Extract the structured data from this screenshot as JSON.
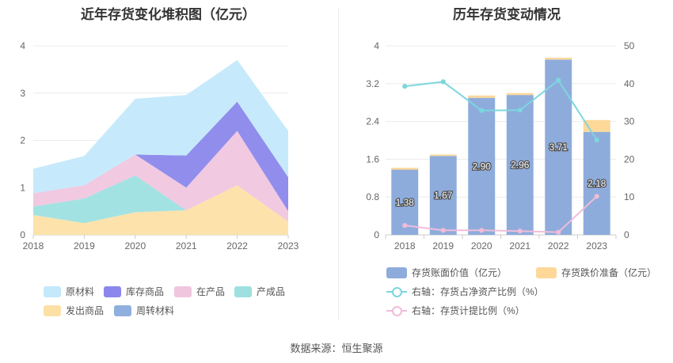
{
  "footer": {
    "source": "数据来源：恒生聚源"
  },
  "chart_data": [
    {
      "type": "area",
      "stacked": true,
      "title": "近年存货变化堆积图（亿元）",
      "categories": [
        "2018",
        "2019",
        "2020",
        "2021",
        "2022",
        "2023"
      ],
      "ylim": [
        0,
        4
      ],
      "yticks": [
        "0",
        "1",
        "2",
        "3",
        "4"
      ],
      "grid": true,
      "legend_position": "bottom",
      "series": [
        {
          "name": "发出商品",
          "color": "#fde0a6",
          "values": [
            0.42,
            0.25,
            0.48,
            0.52,
            1.05,
            0.28
          ]
        },
        {
          "name": "产成品",
          "color": "#9ee0e0",
          "values": [
            0.18,
            0.52,
            0.78,
            0.0,
            0.0,
            0.0
          ]
        },
        {
          "name": "在产品",
          "color": "#f0c6df",
          "values": [
            0.28,
            0.28,
            0.44,
            0.48,
            1.15,
            0.22
          ]
        },
        {
          "name": "库存商品",
          "color": "#8b87ec",
          "values": [
            0.0,
            0.0,
            0.0,
            0.68,
            0.62,
            0.72
          ]
        },
        {
          "name": "周转材料",
          "color": "#8fb0de",
          "values": [
            0.0,
            0.0,
            0.0,
            0.0,
            0.0,
            0.0
          ]
        },
        {
          "name": "原材料",
          "color": "#c3e9fb",
          "values": [
            0.52,
            0.62,
            1.18,
            1.28,
            0.88,
            0.98
          ]
        }
      ],
      "legend_order": [
        "原材料",
        "库存商品",
        "在产品",
        "产成品",
        "发出商品",
        "周转材料"
      ]
    },
    {
      "type": "bar",
      "title": "历年存货变动情况",
      "categories": [
        "2018",
        "2019",
        "2020",
        "2021",
        "2022",
        "2023"
      ],
      "ylim": [
        0,
        4
      ],
      "yticks": [
        "0",
        "0.8",
        "1.6",
        "2.4",
        "3.2",
        "4"
      ],
      "y2lim": [
        0,
        50
      ],
      "y2ticks": [
        "0",
        "10",
        "20",
        "30",
        "40",
        "50"
      ],
      "grid": true,
      "legend_position": "bottom",
      "bar_series": [
        {
          "name": "存货账面价值（亿元）",
          "color": "#8eacdb",
          "values": [
            1.38,
            1.67,
            2.9,
            2.96,
            3.71,
            2.18
          ],
          "labels": [
            "1.38",
            "1.67",
            "2.90",
            "2.96",
            "3.71",
            "2.18"
          ]
        },
        {
          "name": "存货跌价准备（亿元）",
          "color": "#fdd899",
          "values": [
            0.04,
            0.03,
            0.05,
            0.04,
            0.04,
            0.25
          ]
        }
      ],
      "line_series": [
        {
          "name": "右轴：存货占净资产比例（%）",
          "color": "#7dd6df",
          "values": [
            39.3,
            40.5,
            32.9,
            33.0,
            40.9,
            25.1
          ]
        },
        {
          "name": "右轴：存货计提比例（%）",
          "color": "#f0bcd9",
          "values": [
            2.5,
            1.2,
            1.2,
            1.0,
            0.7,
            10.2
          ]
        }
      ]
    }
  ]
}
